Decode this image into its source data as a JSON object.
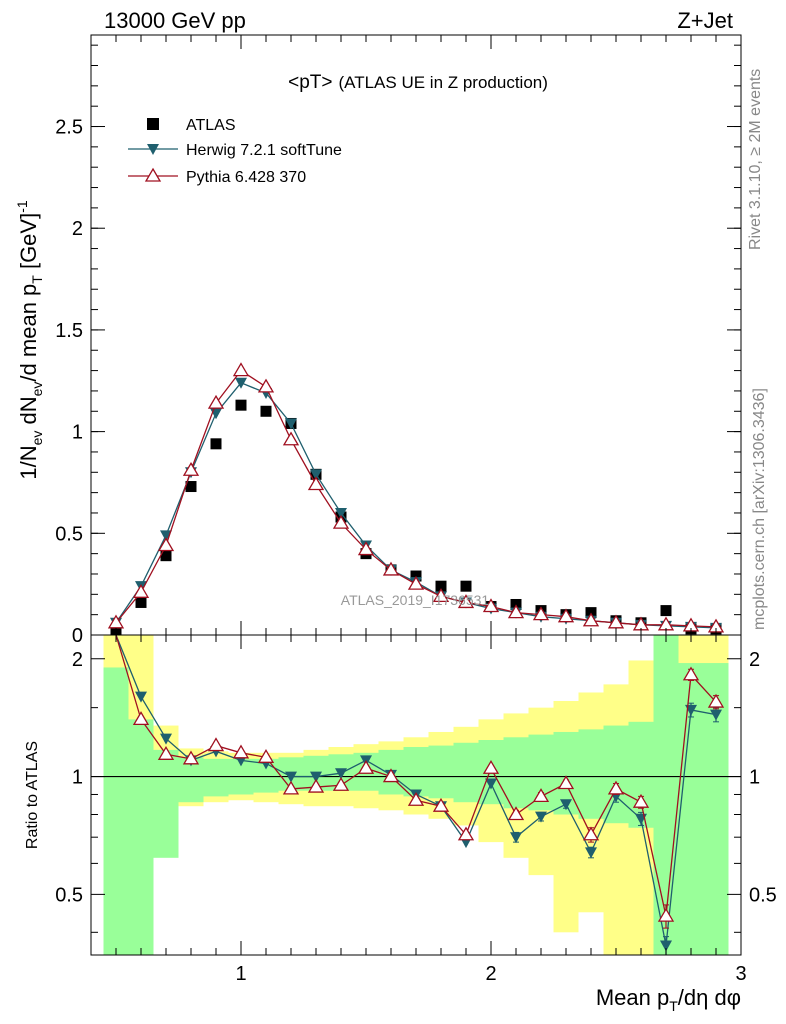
{
  "header": {
    "left": "13000 GeV pp",
    "right": "Z+Jet"
  },
  "side_labels": {
    "rivet": "Rivet 3.1.10, ≥ 2M events",
    "mcplots": "mcplots.cern.ch [arXiv:1306.3436]"
  },
  "colors": {
    "atlas": "#000000",
    "herwig": "#1f5f6e",
    "pythia": "#a01020",
    "band_green": "#99ff99",
    "band_yellow": "#ffff88"
  },
  "chart_data": [
    {
      "type": "line",
      "title": "<pT>",
      "title_suffix": "(ATLAS UE in Z production)",
      "watermark": "ATLAS_2019_I1736531",
      "ylabel": {
        "main": "1/N",
        "sub1": "ev",
        "mid": " dN",
        "sub2": "ev",
        "tail": "/d mean p",
        "sub3": "T",
        "unit": " [GeV]",
        "sup": "-1"
      },
      "xlim": [
        0.4,
        3.0
      ],
      "ylim": [
        0,
        2.95
      ],
      "yticks": [
        0,
        0.5,
        1,
        1.5,
        2,
        2.5
      ],
      "ytick_labels": [
        "0",
        "0.5",
        "1",
        "1.5",
        "2",
        "2.5"
      ],
      "x": [
        0.5,
        0.6,
        0.7,
        0.8,
        0.9,
        1.0,
        1.1,
        1.2,
        1.3,
        1.4,
        1.5,
        1.6,
        1.7,
        1.8,
        1.9,
        2.0,
        2.1,
        2.2,
        2.3,
        2.4,
        2.5,
        2.6,
        2.7,
        2.8,
        2.9
      ],
      "legend_position": "top-left",
      "series": [
        {
          "name": "ATLAS",
          "marker": "square",
          "values": [
            0.02,
            0.16,
            0.39,
            0.73,
            0.94,
            1.13,
            1.1,
            1.04,
            0.79,
            0.58,
            0.4,
            0.32,
            0.29,
            0.24,
            0.24,
            0.14,
            0.15,
            0.12,
            0.1,
            0.11,
            0.07,
            0.06,
            0.12,
            0.03,
            0.03
          ]
        },
        {
          "name": "Herwig 7.2.1 softTune",
          "marker": "triangle-down",
          "values": [
            0.06,
            0.24,
            0.49,
            0.8,
            1.09,
            1.24,
            1.19,
            1.04,
            0.79,
            0.6,
            0.44,
            0.32,
            0.26,
            0.19,
            0.16,
            0.13,
            0.11,
            0.09,
            0.08,
            0.07,
            0.06,
            0.05,
            0.045,
            0.04,
            0.035
          ]
        },
        {
          "name": "Pythia 6.428 370",
          "marker": "triangle-up-open",
          "values": [
            0.06,
            0.21,
            0.44,
            0.81,
            1.14,
            1.3,
            1.22,
            0.96,
            0.74,
            0.55,
            0.42,
            0.32,
            0.25,
            0.19,
            0.16,
            0.14,
            0.11,
            0.1,
            0.09,
            0.07,
            0.06,
            0.05,
            0.05,
            0.045,
            0.04
          ]
        }
      ]
    },
    {
      "type": "line",
      "ylabel": "Ratio to ATLAS",
      "xlabel": {
        "a": "Mean p",
        "sub": "T",
        "b": "/dη dφ"
      },
      "xlim": [
        0.4,
        3.0
      ],
      "ylim": [
        0.35,
        2.3
      ],
      "log_y": true,
      "yticks": [
        0.5,
        1,
        2
      ],
      "ytick_labels": [
        "0.5",
        "1",
        "2"
      ],
      "xticks": [
        1,
        2,
        3
      ],
      "xtick_labels": [
        "1",
        "2",
        "3"
      ],
      "reference_line": 1,
      "bin_edges": [
        0.45,
        0.55,
        0.65,
        0.75,
        0.85,
        0.95,
        1.05,
        1.15,
        1.25,
        1.35,
        1.45,
        1.55,
        1.65,
        1.75,
        1.85,
        1.95,
        2.05,
        2.15,
        2.25,
        2.35,
        2.45,
        2.55,
        2.65,
        2.75,
        2.85,
        2.95
      ],
      "band_green": {
        "lo": [
          0.35,
          0.35,
          0.62,
          0.86,
          0.89,
          0.9,
          0.91,
          0.92,
          0.92,
          0.92,
          0.92,
          0.9,
          0.89,
          0.88,
          0.86,
          0.85,
          0.83,
          0.82,
          0.8,
          0.78,
          0.76,
          0.74,
          0.35,
          0.35,
          0.35
        ],
        "hi": [
          1.9,
          1.4,
          1.17,
          1.12,
          1.11,
          1.11,
          1.11,
          1.12,
          1.13,
          1.14,
          1.15,
          1.17,
          1.19,
          1.2,
          1.22,
          1.24,
          1.26,
          1.28,
          1.3,
          1.32,
          1.35,
          1.38,
          2.3,
          1.95,
          1.95
        ]
      },
      "band_yellow": {
        "lo": [
          0.35,
          0.6,
          0.8,
          0.84,
          0.86,
          0.87,
          0.86,
          0.85,
          0.84,
          0.84,
          0.83,
          0.82,
          0.8,
          0.78,
          0.75,
          0.68,
          0.62,
          0.56,
          0.4,
          0.45,
          0.35,
          0.35,
          0.35,
          0.35,
          0.35
        ],
        "hi": [
          2.3,
          2.3,
          1.35,
          1.18,
          1.16,
          1.15,
          1.15,
          1.15,
          1.17,
          1.19,
          1.21,
          1.23,
          1.26,
          1.3,
          1.34,
          1.4,
          1.45,
          1.5,
          1.56,
          1.64,
          1.72,
          1.98,
          2.3,
          2.3,
          2.3
        ]
      },
      "series": [
        {
          "name": "Herwig 7.2.1 softTune",
          "marker": "triangle-down",
          "values": [
            2.5,
            1.6,
            1.25,
            1.1,
            1.16,
            1.1,
            1.08,
            1.0,
            1.0,
            1.02,
            1.1,
            1.01,
            0.9,
            0.84,
            0.68,
            0.96,
            0.7,
            0.79,
            0.85,
            0.64,
            0.89,
            0.78,
            0.37,
            1.48,
            1.44
          ],
          "errors": [
            0.0,
            0.0,
            0.0,
            0.0,
            0.0,
            0.0,
            0.0,
            0.0,
            0.0,
            0.0,
            0.0,
            0.0,
            0.0,
            0.0,
            0.0,
            0.0,
            0.02,
            0.02,
            0.02,
            0.02,
            0.03,
            0.03,
            0.02,
            0.06,
            0.06
          ]
        },
        {
          "name": "Pythia 6.428 370",
          "marker": "triangle-up-open",
          "values": [
            2.5,
            1.4,
            1.14,
            1.11,
            1.2,
            1.15,
            1.12,
            0.93,
            0.94,
            0.95,
            1.05,
            1.0,
            0.87,
            0.84,
            0.71,
            1.05,
            0.8,
            0.89,
            0.96,
            0.71,
            0.93,
            0.86,
            0.44,
            1.82,
            1.55
          ],
          "errors": [
            0.0,
            0.0,
            0.0,
            0.0,
            0.0,
            0.0,
            0.0,
            0.0,
            0.0,
            0.0,
            0.0,
            0.0,
            0.0,
            0.0,
            0.0,
            0.0,
            0.02,
            0.02,
            0.02,
            0.03,
            0.03,
            0.03,
            0.03,
            0.06,
            0.06
          ]
        }
      ]
    }
  ]
}
